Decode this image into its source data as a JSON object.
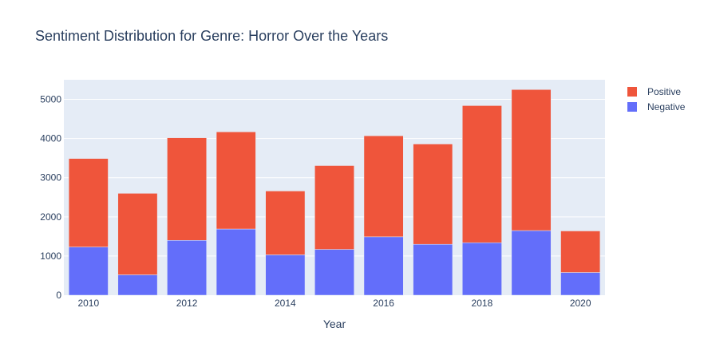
{
  "chart_data": {
    "type": "bar",
    "barmode": "stack",
    "title": "Sentiment Distribution for Genre: Horror Over the Years",
    "xlabel": "Year",
    "ylabel": "",
    "x": [
      2010,
      2011,
      2012,
      2013,
      2014,
      2015,
      2016,
      2017,
      2018,
      2019,
      2020
    ],
    "x_ticks": [
      "2010",
      "2012",
      "2014",
      "2016",
      "2018",
      "2020"
    ],
    "y_ticks": [
      "0",
      "1000",
      "2000",
      "3000",
      "4000",
      "5000"
    ],
    "ylim": [
      0,
      5500
    ],
    "grid": true,
    "legend_position": "top-right",
    "series": [
      {
        "name": "Negative",
        "color": "#636efa",
        "values": [
          1230,
          520,
          1400,
          1690,
          1030,
          1170,
          1490,
          1300,
          1340,
          1650,
          580
        ]
      },
      {
        "name": "Positive",
        "color": "#ef553b",
        "values": [
          2260,
          2080,
          2620,
          2480,
          1630,
          2140,
          2580,
          2560,
          3500,
          3600,
          1060
        ]
      }
    ],
    "legend_order": [
      "Positive",
      "Negative"
    ],
    "plot_background": "#e5ecf6"
  }
}
